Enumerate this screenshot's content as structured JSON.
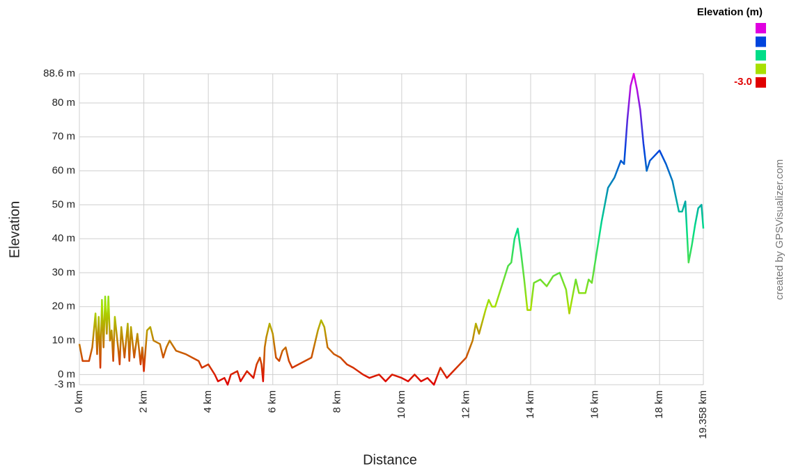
{
  "chart_data": {
    "type": "line",
    "xlabel": "Distance",
    "ylabel": "Elevation",
    "annotation": "created by GPSVisualizer.com",
    "color_scale": {
      "title": "Elevation (m)",
      "stops": [
        {
          "value": 88.6,
          "color": "#e000e0"
        },
        {
          "value": 65.7,
          "color": "#0044dd"
        },
        {
          "value": 42.8,
          "color": "#00dd88"
        },
        {
          "value": 19.9,
          "color": "#a8e000"
        },
        {
          "value": -3,
          "label": "-3.0",
          "color": "#e00000"
        }
      ]
    },
    "grid": true,
    "xlim": [
      0,
      19.358
    ],
    "ylim": [
      -3,
      88.6
    ],
    "xticks": [
      {
        "value": 0,
        "label": "0 km"
      },
      {
        "value": 2,
        "label": "2 km"
      },
      {
        "value": 4,
        "label": "4 km"
      },
      {
        "value": 6,
        "label": "6 km"
      },
      {
        "value": 8,
        "label": "8 km"
      },
      {
        "value": 10,
        "label": "10 km"
      },
      {
        "value": 12,
        "label": "12 km"
      },
      {
        "value": 14,
        "label": "14 km"
      },
      {
        "value": 16,
        "label": "16 km"
      },
      {
        "value": 18,
        "label": "18 km"
      },
      {
        "value": 19.358,
        "label": "19.358 km"
      }
    ],
    "yticks": [
      {
        "value": -3,
        "label": "-3 m"
      },
      {
        "value": 0,
        "label": "0 m"
      },
      {
        "value": 10,
        "label": "10 m"
      },
      {
        "value": 20,
        "label": "20 m"
      },
      {
        "value": 30,
        "label": "30 m"
      },
      {
        "value": 40,
        "label": "40 m"
      },
      {
        "value": 50,
        "label": "50 m"
      },
      {
        "value": 60,
        "label": "60 m"
      },
      {
        "value": 70,
        "label": "70 m"
      },
      {
        "value": 80,
        "label": "80 m"
      },
      {
        "value": 88.6,
        "label": "88.6 m"
      }
    ],
    "x": [
      0,
      0.1,
      0.3,
      0.4,
      0.5,
      0.55,
      0.6,
      0.65,
      0.7,
      0.75,
      0.8,
      0.85,
      0.9,
      0.95,
      1.0,
      1.05,
      1.1,
      1.2,
      1.25,
      1.3,
      1.4,
      1.5,
      1.55,
      1.6,
      1.7,
      1.8,
      1.9,
      1.95,
      2.0,
      2.1,
      2.2,
      2.3,
      2.5,
      2.6,
      2.7,
      2.8,
      3.0,
      3.3,
      3.5,
      3.7,
      3.8,
      4.0,
      4.2,
      4.3,
      4.5,
      4.6,
      4.7,
      4.9,
      5.0,
      5.2,
      5.4,
      5.5,
      5.6,
      5.65,
      5.7,
      5.75,
      5.8,
      5.9,
      6.0,
      6.1,
      6.2,
      6.3,
      6.4,
      6.5,
      6.6,
      6.8,
      7.0,
      7.2,
      7.4,
      7.5,
      7.6,
      7.7,
      7.9,
      8.1,
      8.3,
      8.5,
      8.8,
      9.0,
      9.3,
      9.5,
      9.7,
      10.0,
      10.2,
      10.4,
      10.6,
      10.8,
      11.0,
      11.2,
      11.4,
      11.6,
      11.8,
      12.0,
      12.2,
      12.3,
      12.4,
      12.6,
      12.7,
      12.8,
      12.9,
      13.1,
      13.3,
      13.4,
      13.5,
      13.6,
      13.7,
      13.8,
      13.9,
      14.0,
      14.1,
      14.3,
      14.5,
      14.7,
      14.9,
      15.1,
      15.2,
      15.4,
      15.5,
      15.7,
      15.8,
      15.9,
      16.0,
      16.2,
      16.4,
      16.6,
      16.8,
      16.9,
      17.0,
      17.1,
      17.2,
      17.3,
      17.4,
      17.5,
      17.6,
      17.7,
      17.8,
      18.0,
      18.2,
      18.4,
      18.6,
      18.7,
      18.8,
      18.9,
      19.0,
      19.1,
      19.2,
      19.3,
      19.358
    ],
    "values": [
      9,
      4,
      4,
      8,
      18,
      6,
      17,
      2,
      22,
      8,
      23,
      12,
      23,
      10,
      13,
      4,
      17,
      8,
      3,
      14,
      5,
      15,
      4,
      14,
      5,
      12,
      3,
      8,
      1,
      13,
      14,
      10,
      9,
      5,
      8,
      10,
      7,
      6,
      5,
      4,
      2,
      3,
      0,
      -2,
      -1,
      -3,
      0,
      1,
      -2,
      1,
      -1,
      3,
      5,
      3,
      -2,
      8,
      11,
      15,
      12,
      5,
      4,
      7,
      8,
      4,
      2,
      3,
      4,
      5,
      13,
      16,
      14,
      8,
      6,
      5,
      3,
      2,
      0,
      -1,
      0,
      -2,
      0,
      -1,
      -2,
      0,
      -2,
      -1,
      -3,
      2,
      -1,
      1,
      3,
      5,
      10,
      15,
      12,
      19,
      22,
      20,
      20,
      26,
      32,
      33,
      40,
      43,
      36,
      28,
      19,
      19,
      27,
      28,
      26,
      29,
      30,
      25,
      18,
      28,
      24,
      24,
      28,
      27,
      33,
      45,
      55,
      58,
      63,
      62,
      75,
      85,
      88.6,
      84,
      78,
      68,
      60,
      63,
      64,
      66,
      62,
      57,
      48,
      48,
      51,
      33,
      38,
      44,
      49,
      50,
      43
    ]
  }
}
